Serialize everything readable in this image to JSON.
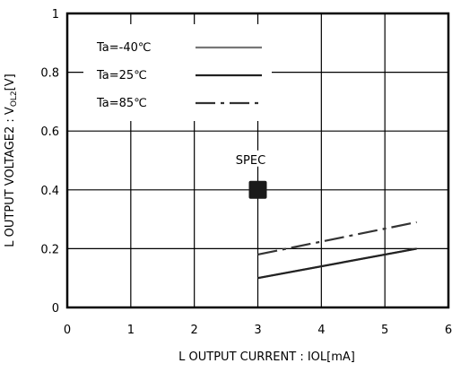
{
  "chart_data": {
    "type": "line",
    "xlabel": "L OUTPUT CURRENT : IOL[mA]",
    "ylabel": "L OUTPUT VOLTAGE2 : V",
    "ylabel_sub": "OL2",
    "ylabel_unit": "[V]",
    "xlim": [
      0,
      6
    ],
    "ylim": [
      0,
      1
    ],
    "xticks": [
      "0",
      "1",
      "2",
      "3",
      "4",
      "5",
      "6"
    ],
    "yticks": [
      "0",
      "0.2",
      "0.4",
      "0.6",
      "0.8",
      "1"
    ],
    "grid": true,
    "legend_position": "top-left",
    "series": [
      {
        "name": "Ta=-40℃",
        "style": "solid",
        "color": "#777777",
        "x": [
          3,
          5.5
        ],
        "y": [
          0.1,
          0.2
        ]
      },
      {
        "name": "Ta=25℃",
        "style": "solid",
        "color": "#222222",
        "x": [
          3,
          5.5
        ],
        "y": [
          0.1,
          0.2
        ]
      },
      {
        "name": "Ta=85℃",
        "style": "dashdot",
        "color": "#333333",
        "x": [
          3,
          5.5
        ],
        "y": [
          0.18,
          0.29
        ]
      }
    ],
    "annotations": [
      {
        "label": "SPEC",
        "x": 3,
        "y": 0.4,
        "marker": "square"
      }
    ]
  }
}
